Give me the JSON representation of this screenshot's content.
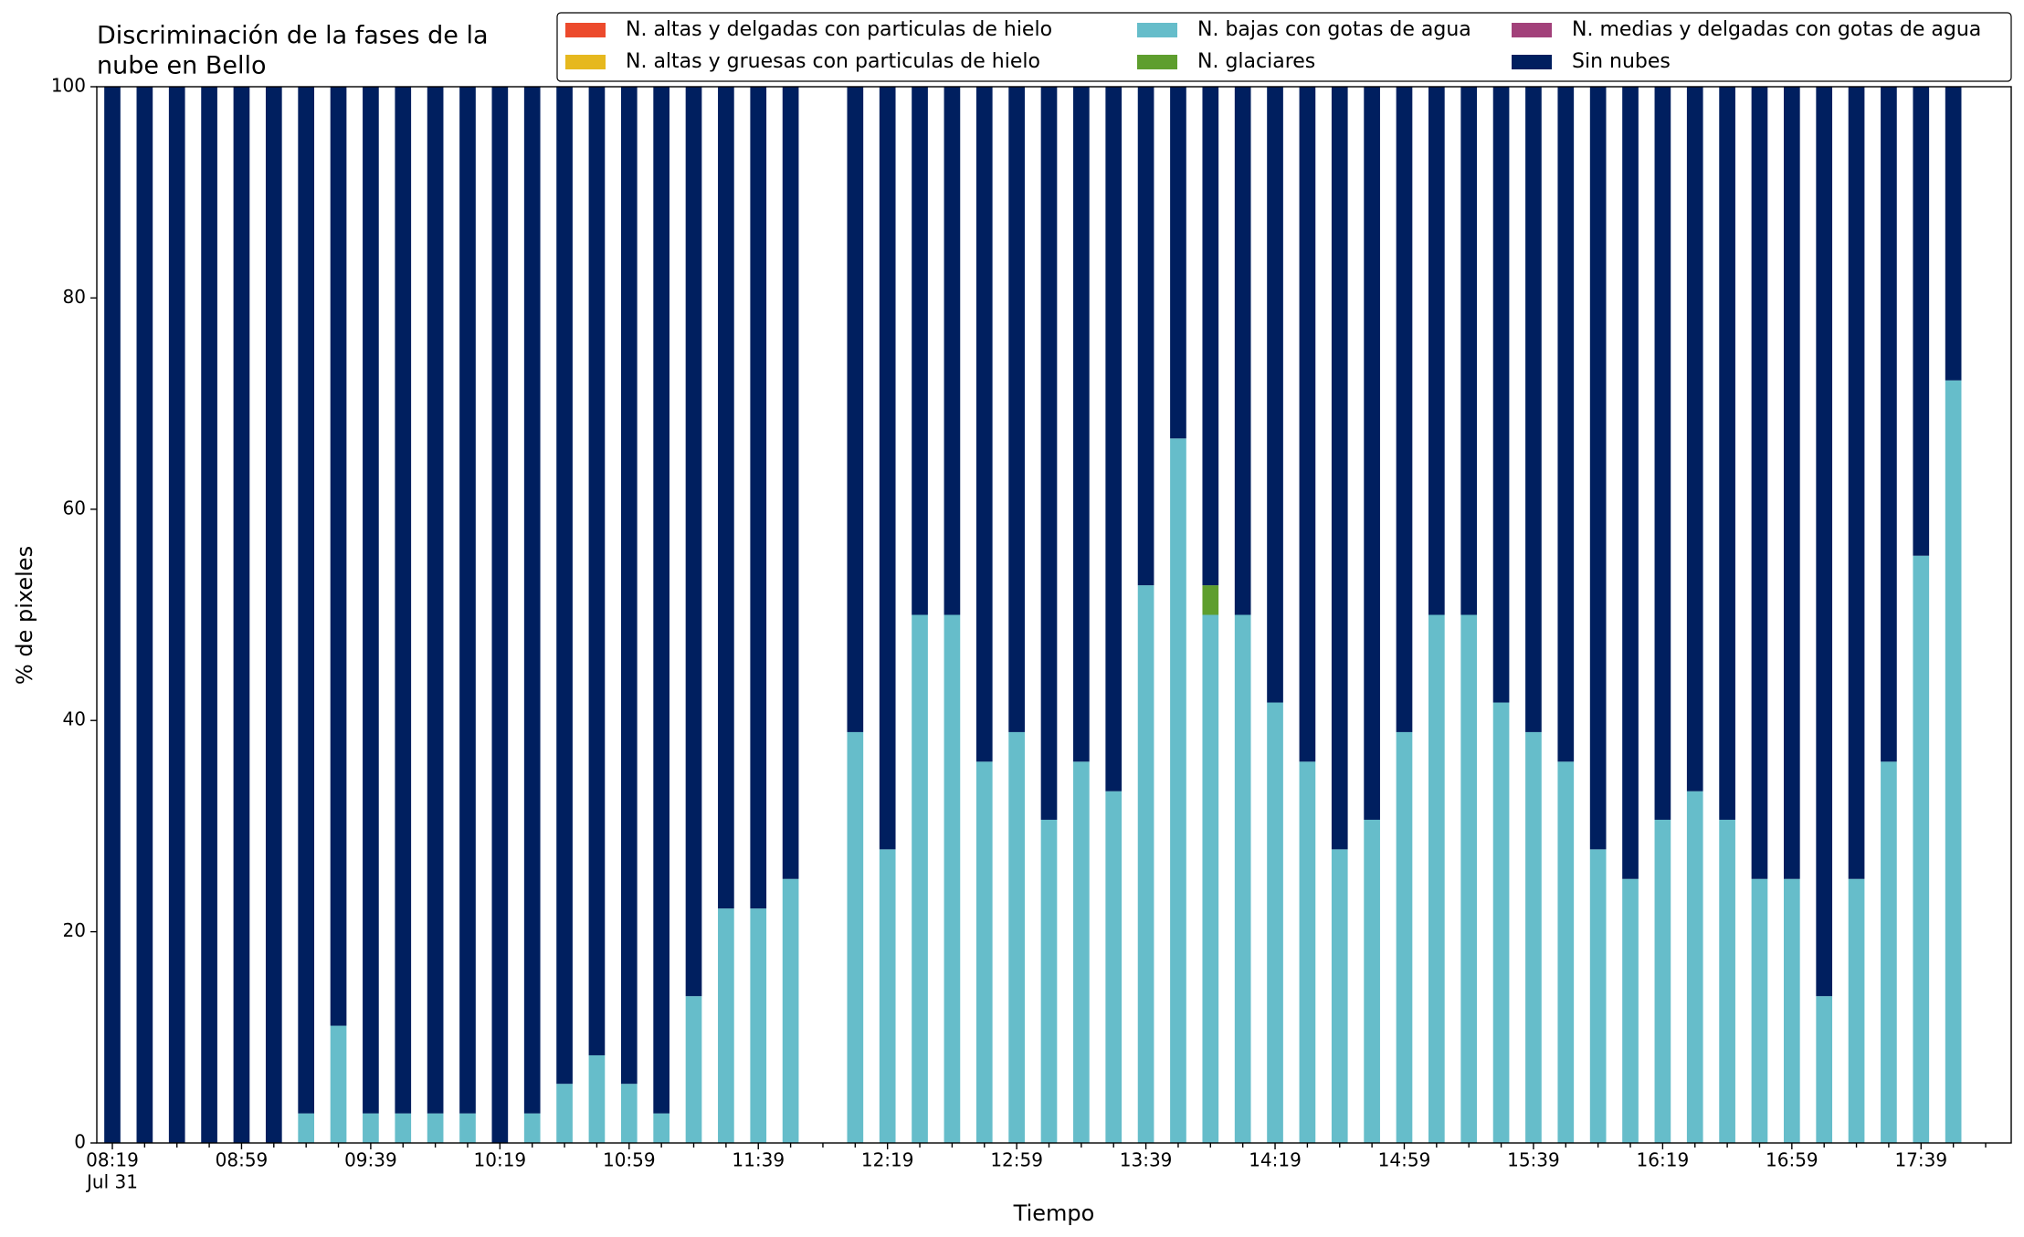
{
  "chart_data": {
    "type": "stacked_bar",
    "title": [
      "Discriminación de la fases de la",
      "nube en Bello"
    ],
    "x_label": "Tiempo",
    "y_label": "% de pixeles",
    "x_date_label": "Jul 31",
    "categories": [
      "08:19",
      null,
      null,
      null,
      "08:59",
      null,
      null,
      null,
      "09:39",
      null,
      null,
      null,
      "10:19",
      null,
      null,
      null,
      "10:59",
      null,
      null,
      null,
      "11:39",
      null,
      null,
      null,
      "12:19",
      null,
      null,
      null,
      "12:59",
      null,
      null,
      null,
      "13:39",
      null,
      null,
      null,
      "14:19",
      null,
      null,
      null,
      "14:59",
      null,
      null,
      null,
      "15:39",
      null,
      null,
      null,
      "16:19",
      null,
      null,
      null,
      "16:59",
      null,
      null,
      null,
      "17:39",
      null,
      null
    ],
    "series": [
      {
        "name": "N. altas y delgadas con particulas de hielo",
        "color": "#ec4a2c",
        "values": [
          0,
          0,
          0,
          0,
          0,
          0,
          0,
          0,
          0,
          0,
          0,
          0,
          0,
          0,
          0,
          0,
          0,
          0,
          0,
          0,
          0,
          0,
          null,
          0,
          0,
          0,
          0,
          0,
          0,
          0,
          0,
          0,
          0,
          0,
          0,
          0,
          0,
          0,
          0,
          0,
          0,
          0,
          0,
          0,
          0,
          0,
          0,
          0,
          0,
          0,
          0,
          0,
          0,
          0,
          0,
          0,
          0,
          0,
          null
        ]
      },
      {
        "name": "N. altas y gruesas con particulas de hielo",
        "color": "#e6b81e",
        "values": [
          0,
          0,
          0,
          0,
          0,
          0,
          0,
          0,
          0,
          0,
          0,
          0,
          0,
          0,
          0,
          0,
          0,
          0,
          0,
          0,
          0,
          0,
          null,
          0,
          0,
          0,
          0,
          0,
          0,
          0,
          0,
          0,
          0,
          0,
          0,
          0,
          0,
          0,
          0,
          0,
          0,
          0,
          0,
          0,
          0,
          0,
          0,
          0,
          0,
          0,
          0,
          0,
          0,
          0,
          0,
          0,
          0,
          0,
          null
        ]
      },
      {
        "name": "N. bajas con gotas de agua",
        "color": "#66bdca",
        "values": [
          0,
          0,
          0,
          0,
          0,
          0,
          2.8,
          11.1,
          2.8,
          2.8,
          2.8,
          2.8,
          0,
          2.8,
          5.6,
          8.3,
          5.6,
          2.8,
          13.9,
          22.2,
          22.2,
          25,
          null,
          38.9,
          27.8,
          50,
          50,
          36.1,
          38.9,
          30.6,
          36.1,
          33.3,
          52.8,
          66.7,
          50,
          50,
          41.7,
          36.1,
          27.8,
          30.6,
          38.9,
          50,
          50,
          41.7,
          38.9,
          36.1,
          27.8,
          25,
          30.6,
          33.3,
          30.6,
          25,
          25,
          13.9,
          25,
          36.1,
          55.6,
          72.2,
          null
        ]
      },
      {
        "name": "N. glaciares",
        "color": "#5e9e2e",
        "values": [
          0,
          0,
          0,
          0,
          0,
          0,
          0,
          0,
          0,
          0,
          0,
          0,
          0,
          0,
          0,
          0,
          0,
          0,
          0,
          0,
          0,
          0,
          null,
          0,
          0,
          0,
          0,
          0,
          0,
          0,
          0,
          0,
          0,
          0,
          2.8,
          0,
          0,
          0,
          0,
          0,
          0,
          0,
          0,
          0,
          0,
          0,
          0,
          0,
          0,
          0,
          0,
          0,
          0,
          0,
          0,
          0,
          0,
          0,
          null
        ]
      },
      {
        "name": "N. medias y delgadas con gotas de agua",
        "color": "#a2417a",
        "values": [
          0,
          0,
          0,
          0,
          0,
          0,
          0,
          0,
          0,
          0,
          0,
          0,
          0,
          0,
          0,
          0,
          0,
          0,
          0,
          0,
          0,
          0,
          null,
          0,
          0,
          0,
          0,
          0,
          0,
          0,
          0,
          0,
          0,
          0,
          0,
          0,
          0,
          0,
          0,
          0,
          0,
          0,
          0,
          0,
          0,
          0,
          0,
          0,
          0,
          0,
          0,
          0,
          0,
          0,
          0,
          0,
          0,
          0,
          null
        ]
      },
      {
        "name": "Sin nubes",
        "color": "#001f5f",
        "values": [
          100,
          100,
          100,
          100,
          100,
          100,
          97.2,
          88.9,
          97.2,
          97.2,
          97.2,
          97.2,
          100,
          97.2,
          94.4,
          91.7,
          94.4,
          97.2,
          86.1,
          77.8,
          77.8,
          75,
          null,
          61.1,
          72.2,
          50,
          50,
          63.9,
          61.1,
          69.4,
          63.9,
          66.7,
          47.2,
          33.3,
          47.2,
          50,
          58.3,
          63.9,
          72.2,
          69.4,
          61.1,
          50,
          50,
          58.3,
          61.1,
          63.9,
          72.2,
          75,
          69.4,
          66.7,
          69.4,
          75,
          75,
          86.1,
          75,
          63.9,
          44.4,
          27.8,
          null
        ]
      }
    ],
    "ylim": [
      0,
      100
    ],
    "yticks": [
      0,
      20,
      40,
      60,
      80,
      100
    ],
    "legend": "upper right"
  }
}
